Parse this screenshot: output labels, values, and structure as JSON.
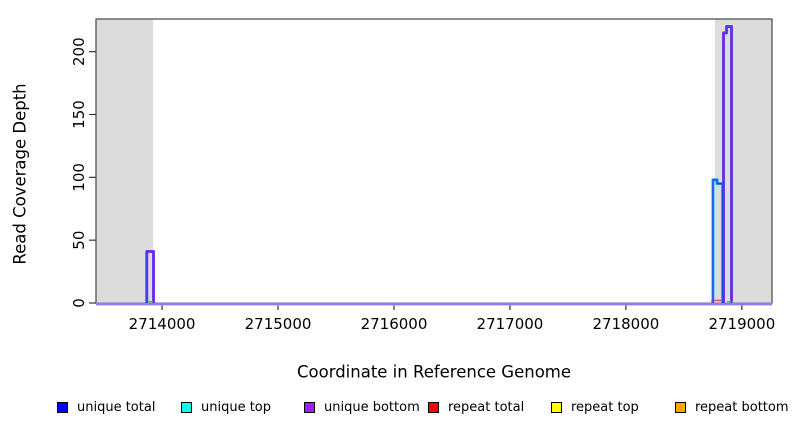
{
  "chart_data": {
    "type": "line",
    "title": "",
    "xlabel": "Coordinate in Reference Genome",
    "ylabel": "Read Coverage Depth",
    "xlim": [
      2713430,
      2719260
    ],
    "ylim": [
      0,
      226
    ],
    "x_ticks": [
      2714000,
      2715000,
      2716000,
      2717000,
      2718000,
      2719000
    ],
    "y_ticks": [
      0,
      50,
      100,
      150,
      200
    ],
    "grid": false,
    "legend_position": "bottom",
    "shaded_regions": [
      {
        "x0": 2713430,
        "x1": 2713922,
        "color": "#dcdcdc"
      },
      {
        "x0": 2718768,
        "x1": 2719260,
        "color": "#dcdcdc"
      }
    ],
    "baseline": {
      "value": 0,
      "outer_color": "#a89af6",
      "core_color": "#7d6cf0"
    },
    "series": [
      {
        "name": "unique total",
        "legend_color": "#0000ff",
        "line_color": "#3340f0",
        "draw": "core",
        "segments": [
          [
            2713868,
            2713926,
            41
          ],
          [
            2718751,
            2718786,
            98
          ],
          [
            2718786,
            2718834,
            95
          ],
          [
            2718842,
            2718868,
            215
          ],
          [
            2718868,
            2718911,
            220
          ]
        ]
      },
      {
        "name": "unique top",
        "legend_color": "#00ffff",
        "line_color": "#15aaf5",
        "draw": "edge",
        "segments": [
          [
            2718751,
            2718786,
            98
          ],
          [
            2718786,
            2718834,
            95
          ]
        ]
      },
      {
        "name": "unique bottom",
        "legend_color": "#a020f0",
        "line_color": "#7e3ae8",
        "draw": "edge",
        "segments": [
          [
            2713868,
            2713926,
            41
          ],
          [
            2718842,
            2718868,
            215
          ],
          [
            2718868,
            2718911,
            220
          ]
        ]
      },
      {
        "name": "repeat total",
        "legend_color": "#ff0000",
        "line_color": "#f25648",
        "draw": "thin",
        "segments": [
          [
            2718742,
            2718837,
            2
          ]
        ]
      },
      {
        "name": "repeat top",
        "legend_color": "#ffff00",
        "line_color": "#ffff00",
        "draw": "thin",
        "segments": []
      },
      {
        "name": "repeat bottom",
        "legend_color": "#ffa500",
        "line_color": "#ffa500",
        "draw": "thin",
        "segments": []
      }
    ],
    "minor_segments": [
      {
        "x0": 2713878,
        "x1": 2713922,
        "depth": 1,
        "color": "#52c25e"
      },
      {
        "x0": 2718872,
        "x1": 2718924,
        "depth": 1,
        "color": "#52c25e"
      }
    ]
  },
  "x_axis": {
    "title": "Coordinate in Reference Genome"
  },
  "y_axis": {
    "title": "Read Coverage Depth"
  },
  "legend": {
    "items": [
      {
        "label": "unique total",
        "color": "#0000ff"
      },
      {
        "label": "unique top",
        "color": "#00ffff"
      },
      {
        "label": "unique bottom",
        "color": "#a020f0"
      },
      {
        "label": "repeat total",
        "color": "#ff0000"
      },
      {
        "label": "repeat top",
        "color": "#ffff00"
      },
      {
        "label": "repeat bottom",
        "color": "#ffa500"
      }
    ]
  }
}
